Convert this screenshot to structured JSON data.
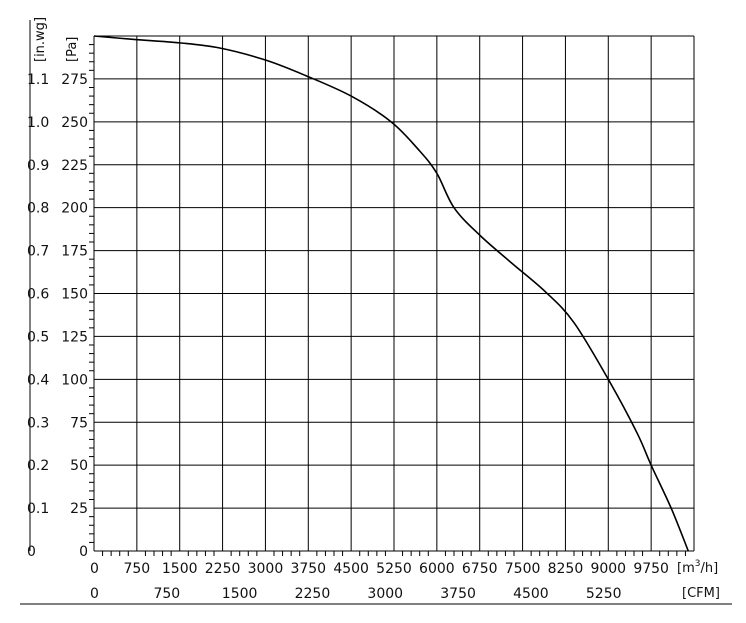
{
  "chart_data": {
    "type": "line",
    "title": "",
    "x_primary": {
      "unit_base": "[m",
      "unit_sup": "3",
      "unit_tail": "/h]",
      "ticks": [
        "0",
        "750",
        "1500",
        "2250",
        "3000",
        "3750",
        "4500",
        "5250",
        "6000",
        "6750",
        "7500",
        "8250",
        "9000",
        "9750"
      ],
      "range": [
        0,
        10500
      ]
    },
    "x_secondary": {
      "unit": "[CFM]",
      "ticks": [
        "0",
        "750",
        "1500",
        "2250",
        "3000",
        "3750",
        "4500",
        "5250"
      ],
      "ticks_cfm": [
        0,
        750,
        1500,
        2250,
        3000,
        3750,
        4500,
        5250
      ]
    },
    "y_primary": {
      "unit": "[Pa]",
      "ticks": [
        "0",
        "25",
        "50",
        "75",
        "100",
        "125",
        "150",
        "175",
        "200",
        "225",
        "250",
        "275"
      ],
      "range": [
        0,
        300
      ]
    },
    "y_secondary": {
      "unit": "[in.wg]",
      "ticks": [
        "0",
        "0.1",
        "0.2",
        "0.3",
        "0.4",
        "0.5",
        "0.6",
        "0.7",
        "0.8",
        "0.9",
        "1.0",
        "1.1"
      ]
    },
    "grid": true,
    "series": [
      {
        "x": [
          0,
          700,
          1500,
          2200,
          3000,
          3700,
          4500,
          5200,
          5700,
          6000,
          6300,
          6750,
          7300,
          7900,
          8400,
          9000,
          9500,
          9750,
          10100,
          10400
        ],
        "y": [
          300,
          298,
          296,
          293,
          286,
          277,
          265,
          250,
          233,
          220,
          200,
          184,
          168,
          151,
          133,
          100,
          69,
          50,
          25,
          0
        ]
      }
    ]
  }
}
